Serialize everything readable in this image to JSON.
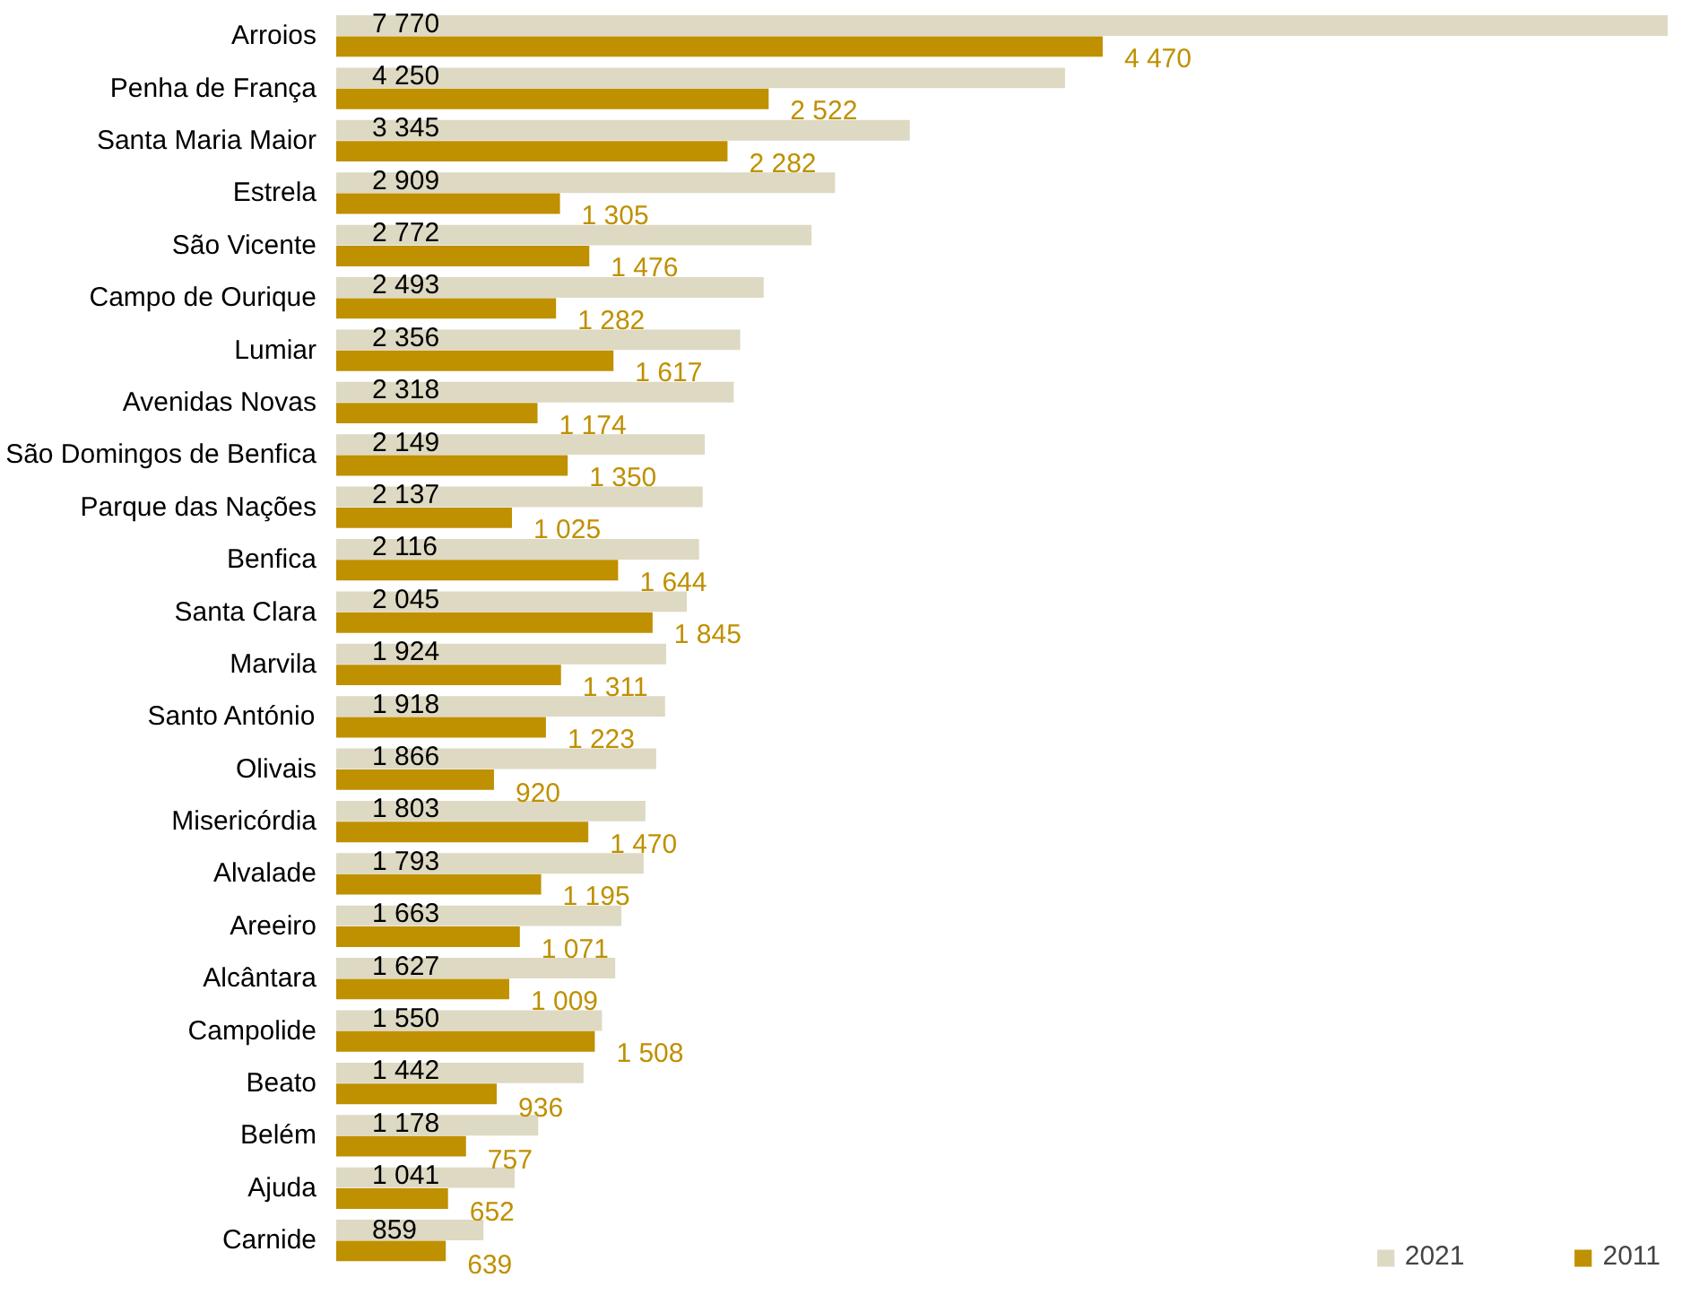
{
  "chart_data": {
    "type": "bar",
    "orientation": "horizontal",
    "legend": "bottom right",
    "categories": [
      "Arroios",
      "Penha de França",
      "Santa Maria Maior",
      "Estrela",
      "São Vicente",
      "Campo de Ourique",
      "Lumiar",
      "Avenidas Novas",
      "São Domingos de Benfica",
      "Parque das Nações",
      "Benfica",
      "Santa Clara",
      "Marvila",
      "Santo António",
      "Olivais",
      "Misericórdia",
      "Alvalade",
      "Areeiro",
      "Alcântara",
      "Campolide",
      "Beato",
      "Belém",
      "Ajuda",
      "Carnide"
    ],
    "series": [
      {
        "name": "2021",
        "color": "#ddd9c3",
        "values": [
          7770,
          4250,
          3345,
          2909,
          2772,
          2493,
          2356,
          2318,
          2149,
          2137,
          2116,
          2045,
          1924,
          1918,
          1866,
          1803,
          1793,
          1663,
          1627,
          1550,
          1442,
          1178,
          1041,
          859
        ],
        "value_labels": [
          "7 770",
          "4 250",
          "3 345",
          "2 909",
          "2 772",
          "2 493",
          "2 356",
          "2 318",
          "2 149",
          "2 137",
          "2 116",
          "2 045",
          "1 924",
          "1 918",
          "1 866",
          "1 803",
          "1 793",
          "1 663",
          "1 627",
          "1 550",
          "1 442",
          "1 178",
          "1 041",
          "859"
        ]
      },
      {
        "name": "2011",
        "color": "#bf9000",
        "values": [
          4470,
          2522,
          2282,
          1305,
          1476,
          1282,
          1617,
          1174,
          1350,
          1025,
          1644,
          1845,
          1311,
          1223,
          920,
          1470,
          1195,
          1071,
          1009,
          1508,
          936,
          757,
          652,
          639
        ],
        "value_labels": [
          "4 470",
          "2 522",
          "2 282",
          "1 305",
          "1 476",
          "1 282",
          "1 617",
          "1 174",
          "1 350",
          "1 025",
          "1 644",
          "1 845",
          "1 311",
          "1 223",
          "920",
          "1 470",
          "1 195",
          "1 071",
          "1 009",
          "1 508",
          "936",
          "757",
          "652",
          "639"
        ]
      }
    ]
  }
}
